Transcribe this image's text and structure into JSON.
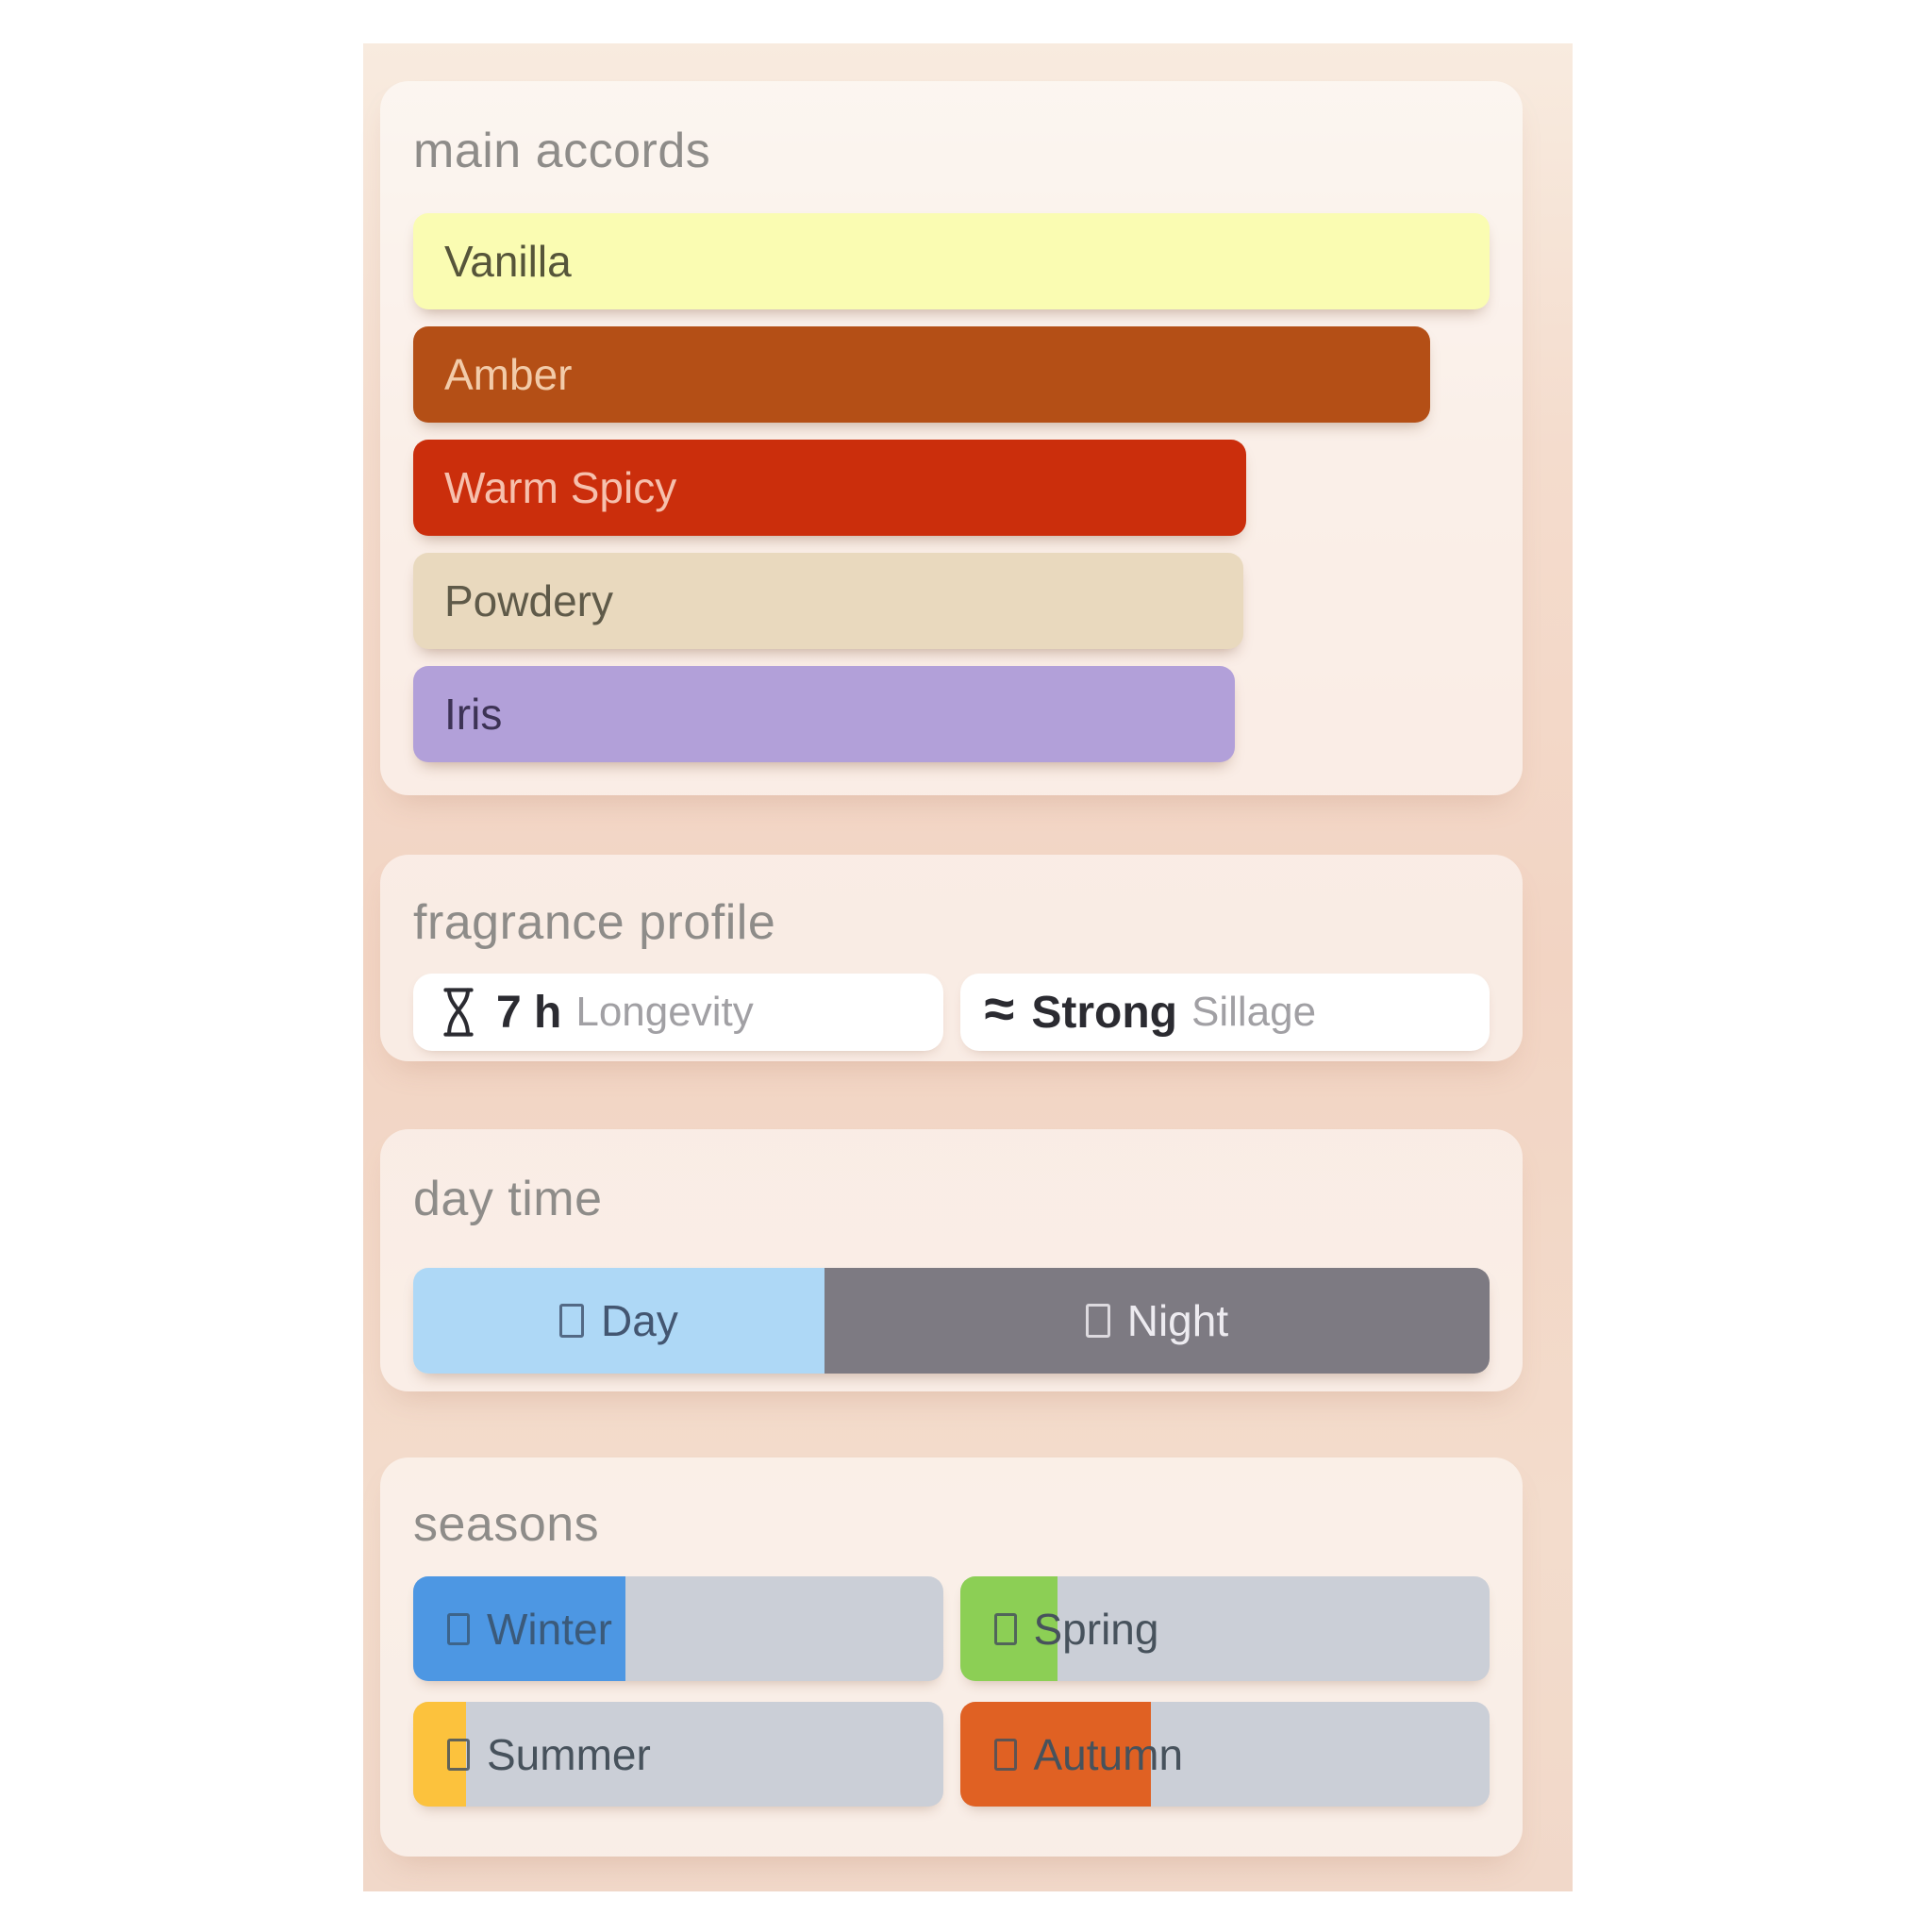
{
  "theme": {
    "page_bg": "#ffffff",
    "panel_gradient_top": "#f8ebdf",
    "panel_gradient_mid": "#f2d4c3",
    "panel_gradient_bottom": "#f1d8c9",
    "card_bg": "rgba(255,255,255,0.55)",
    "title_color": "#8e8c89",
    "track_color": "#cbcfd7"
  },
  "main_accords": {
    "title": "main accords",
    "accords": [
      {
        "label": "Vanilla",
        "width_pct": 100,
        "color": "#fafcb2",
        "text_color": "#56553a"
      },
      {
        "label": "Amber",
        "width_pct": 94.5,
        "color": "#b44f16",
        "text_color": "#f2cba9"
      },
      {
        "label": "Warm Spicy",
        "width_pct": 77.4,
        "color": "#cb2e0c",
        "text_color": "#f6c0ad"
      },
      {
        "label": "Powdery",
        "width_pct": 77.1,
        "color": "#e9d9be",
        "text_color": "#5f5a49"
      },
      {
        "label": "Iris",
        "width_pct": 76.3,
        "color": "#b2a0d9",
        "text_color": "#3d3355"
      }
    ]
  },
  "fragrance_profile": {
    "title": "fragrance profile",
    "longevity": {
      "icon": "hourglass-icon",
      "value": "7 h",
      "label": "Longevity"
    },
    "sillage": {
      "icon": "waves-icon",
      "icon_glyph": "≈",
      "value": "Strong",
      "label": "Sillage"
    }
  },
  "day_time": {
    "title": "day time",
    "segments": [
      {
        "label": "Day",
        "width_pct": 38.2,
        "color": "#aed8f6",
        "text_color": "#435671"
      },
      {
        "label": "Night",
        "width_pct": 61.8,
        "color": "#7d7a82",
        "text_color": "#edebf0"
      }
    ]
  },
  "seasons": {
    "title": "seasons",
    "items": [
      {
        "label": "Winter",
        "fill_pct": 40,
        "color": "#4d97e3",
        "text_color": "#3b5a7a"
      },
      {
        "label": "Spring",
        "fill_pct": 18.5,
        "color": "#8ccf55",
        "text_color": "#47525c"
      },
      {
        "label": "Summer",
        "fill_pct": 10,
        "color": "#fcc23d",
        "text_color": "#47525c"
      },
      {
        "label": "Autumn",
        "fill_pct": 36,
        "color": "#e06123",
        "text_color": "#47525c"
      }
    ]
  }
}
